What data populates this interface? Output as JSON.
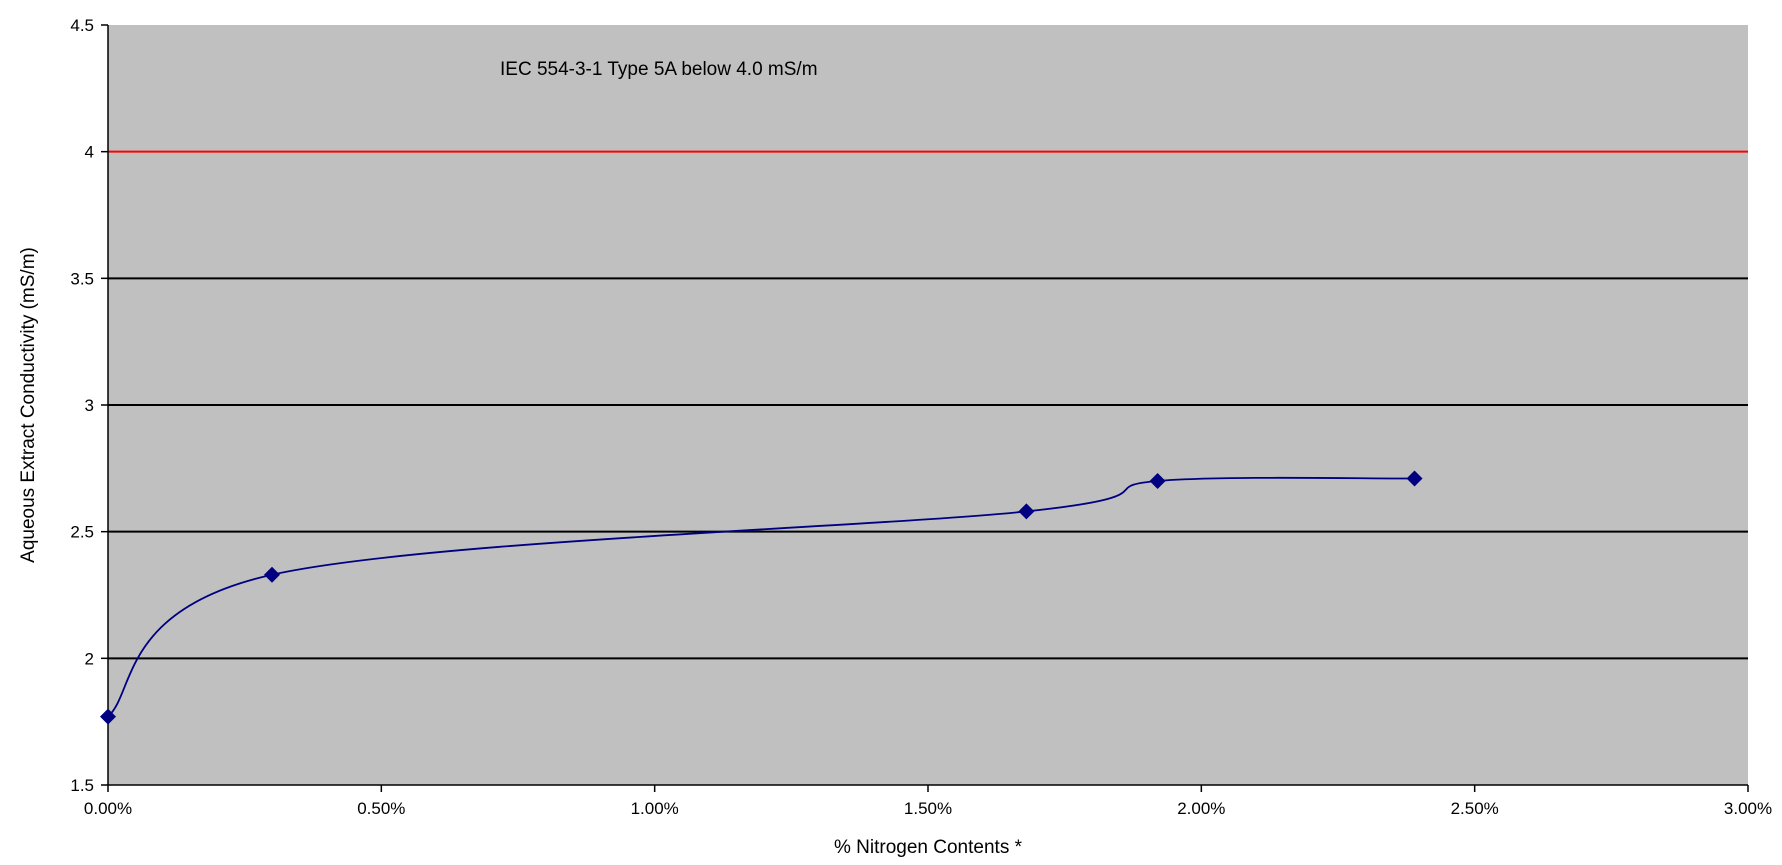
{
  "chart_data": {
    "type": "line",
    "title": "",
    "xlabel": "% Nitrogen Contents *",
    "ylabel": "Aqueous Extract Conductivity (mS/m)",
    "xlim": [
      0,
      0.03
    ],
    "ylim": [
      1.5,
      4.5
    ],
    "x_ticks": [
      0,
      0.005,
      0.01,
      0.015,
      0.02,
      0.025,
      0.03
    ],
    "x_tick_labels": [
      "0.00%",
      "0.50%",
      "1.00%",
      "1.50%",
      "2.00%",
      "2.50%",
      "3.00%"
    ],
    "y_ticks": [
      1.5,
      2,
      2.5,
      3,
      3.5,
      4,
      4.5
    ],
    "y_tick_labels": [
      "1.5",
      "2",
      "2.5",
      "3",
      "3.5",
      "4",
      "4.5"
    ],
    "grid": true,
    "series": [
      {
        "smoothed": true,
        "marker": "diamond",
        "color": "#000080",
        "x": [
          0.0,
          0.003,
          0.0168,
          0.0192,
          0.0239
        ],
        "y": [
          1.77,
          2.33,
          2.58,
          2.7,
          2.71
        ]
      }
    ],
    "reference_line": {
      "y": 4.0,
      "color": "#ff0000"
    },
    "annotation": "IEC 554-3-1 Type 5A  below 4.0 mS/m",
    "colors": {
      "plot_background": "#c0c0c0",
      "gridline": "#000000"
    }
  }
}
